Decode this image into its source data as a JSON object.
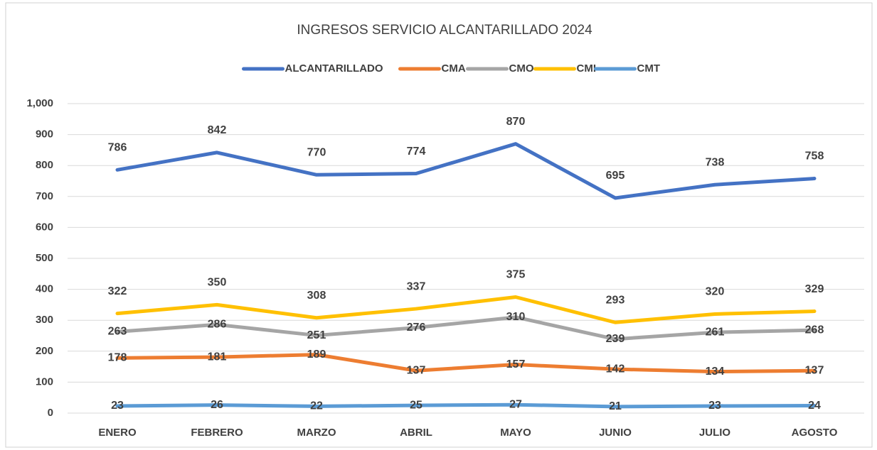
{
  "chart_data": {
    "type": "line",
    "title": "INGRESOS SERVICIO ALCANTARILLADO 2024",
    "categories": [
      "ENERO",
      "FEBRERO",
      "MARZO",
      "ABRIL",
      "MAYO",
      "JUNIO",
      "JULIO",
      "AGOSTO"
    ],
    "series": [
      {
        "name": "ALCANTARILLADO",
        "color": "#4472c4",
        "values": [
          786,
          842,
          770,
          774,
          870,
          695,
          738,
          758
        ]
      },
      {
        "name": "CMA",
        "color": "#ed7d31",
        "values": [
          178,
          181,
          189,
          137,
          157,
          142,
          134,
          137
        ]
      },
      {
        "name": "CMO",
        "color": "#a5a5a5",
        "values": [
          263,
          286,
          251,
          276,
          310,
          239,
          261,
          268
        ]
      },
      {
        "name": "CMI",
        "color": "#ffc000",
        "values": [
          322,
          350,
          308,
          337,
          375,
          293,
          320,
          329
        ]
      },
      {
        "name": "CMT",
        "color": "#5b9bd5",
        "values": [
          23,
          26,
          22,
          25,
          27,
          21,
          23,
          24
        ]
      }
    ],
    "ylim": [
      0,
      1000
    ],
    "yticks": [
      0,
      100,
      200,
      300,
      400,
      500,
      600,
      700,
      800,
      900,
      {
        "value": 1000,
        "label": "1,000"
      }
    ],
    "grid": true,
    "legend": "top"
  }
}
